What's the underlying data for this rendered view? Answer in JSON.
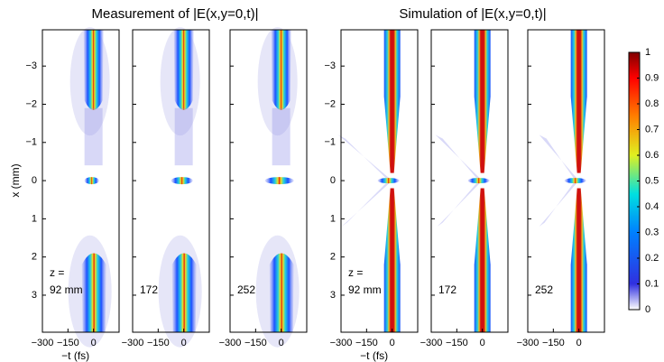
{
  "titles": [
    "Measurement of |E(x,y=0,t)|",
    "Simulation of |E(x,y=0,t)|"
  ],
  "chart_data": {
    "type": "heatmap",
    "x_axis": {
      "label": "−t (fs)",
      "xlim": [
        -300,
        150
      ],
      "xticks": [
        {
          "value": -300,
          "label": "−300"
        },
        {
          "value": -150,
          "label": "−150"
        },
        0
      ]
    },
    "y_axis": {
      "label": "x (mm)",
      "ylim": [
        -3.95,
        3.97
      ],
      "yticks": [
        {
          "value": -3,
          "label": "−3"
        },
        {
          "value": -2,
          "label": "−2"
        },
        {
          "value": -1,
          "label": "−1"
        },
        0,
        1,
        2,
        3
      ]
    },
    "panels": [
      [
        "z =",
        "92 mm"
      ],
      [
        "172"
      ],
      [
        "252"
      ],
      [
        "z =",
        "92 mm"
      ],
      [
        "172"
      ],
      [
        "252"
      ]
    ],
    "colorbar": {
      "lim": [
        0,
        1
      ],
      "ticks": [
        0,
        0.1,
        0.2,
        0.3,
        0.4,
        0.5,
        0.6,
        0.7,
        0.8,
        0.9,
        1
      ]
    }
  }
}
